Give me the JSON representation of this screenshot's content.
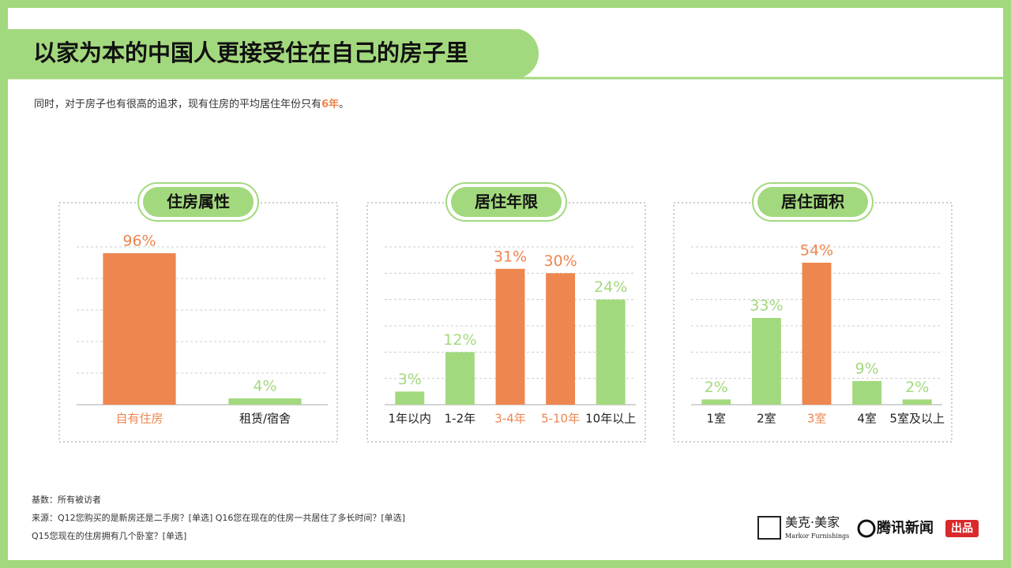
{
  "title": "以家为本的中国人更接受住在自己的房子里",
  "subtitle": {
    "text": "同时，对于房子也有很高的追求，现有住房的平均居住年份只有",
    "highlight": "6年",
    "end": "。"
  },
  "chart_data": [
    {
      "type": "bar",
      "title": "住房属性",
      "categories": [
        "自有住房",
        "租赁/宿舍"
      ],
      "values": [
        96,
        4
      ],
      "value_labels": [
        "96%",
        "4%"
      ],
      "colors": [
        "#ee8650",
        "#a3d97e"
      ],
      "ylim": [
        0,
        100
      ],
      "yticks": [
        0,
        20,
        40,
        60,
        80,
        100
      ],
      "grid": true
    },
    {
      "type": "bar",
      "title": "居住年限",
      "categories": [
        "1年以内",
        "1-2年",
        "3-4年",
        "5-10年",
        "10年以上"
      ],
      "values": [
        3,
        12,
        31,
        30,
        24
      ],
      "value_labels": [
        "3%",
        "12%",
        "31%",
        "30%",
        "24%"
      ],
      "colors": [
        "#a3d97e",
        "#a3d97e",
        "#ee8650",
        "#ee8650",
        "#a3d97e"
      ],
      "ylim": [
        0,
        36
      ],
      "yticks": [
        0,
        6,
        12,
        18,
        24,
        30,
        36
      ],
      "grid": true
    },
    {
      "type": "bar",
      "title": "居住面积",
      "categories": [
        "1室",
        "2室",
        "3室",
        "4室",
        "5室及以上"
      ],
      "values": [
        2,
        33,
        54,
        9,
        2
      ],
      "value_labels": [
        "2%",
        "33%",
        "54%",
        "9%",
        "2%"
      ],
      "colors": [
        "#a3d97e",
        "#a3d97e",
        "#ee8650",
        "#a3d97e",
        "#a3d97e"
      ],
      "ylim": [
        0,
        60
      ],
      "yticks": [
        0,
        10,
        20,
        30,
        40,
        50,
        60
      ],
      "grid": true
    }
  ],
  "notes": [
    "基数：所有被访者",
    "来源：Q12您购买的是新房还是二手房？[单选] Q16您在现在的住房一共居住了多长时间？[单选]",
    "Q15您现在的住房拥有几个卧室？[单选]"
  ],
  "logos": {
    "brand": "美克·美家",
    "brand_en": "Markor Furnishings",
    "news": "腾讯新闻",
    "badge": "出品"
  }
}
